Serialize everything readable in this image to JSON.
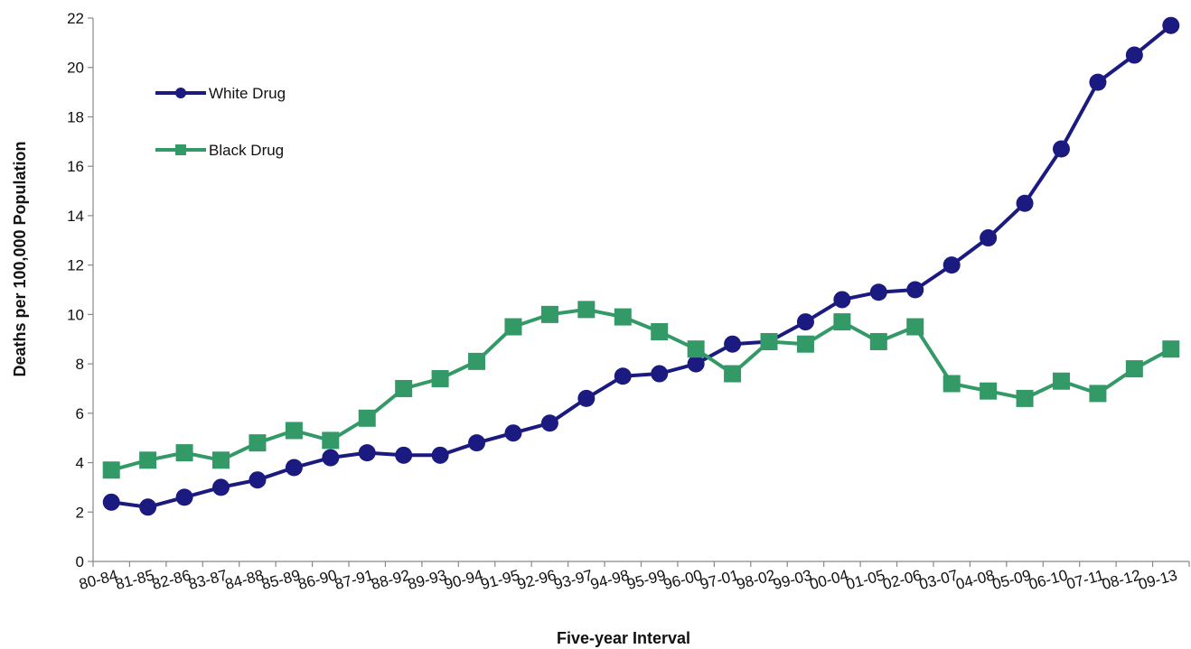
{
  "chart_data": {
    "type": "line",
    "title": "",
    "xlabel": "Five-year Interval",
    "ylabel": "Deaths per 100,000 Population",
    "ylim": [
      0,
      22
    ],
    "yticks": [
      0,
      2,
      4,
      6,
      8,
      10,
      12,
      14,
      16,
      18,
      20,
      22
    ],
    "grid": false,
    "legend_position": "top-left",
    "categories": [
      "80-84",
      "81-85",
      "82-86",
      "83-87",
      "84-88",
      "85-89",
      "86-90",
      "87-91",
      "88-92",
      "89-93",
      "90-94",
      "91-95",
      "92-96",
      "93-97",
      "94-98",
      "95-99",
      "96-00",
      "97-01",
      "98-02",
      "99-03",
      "00-04",
      "01-05",
      "02-06",
      "03-07",
      "04-08",
      "05-09",
      "06-10",
      "07-11",
      "08-12",
      "09-13"
    ],
    "series": [
      {
        "name": "White Drug",
        "color": "#1a1a80",
        "marker": "circle",
        "values": [
          2.4,
          2.2,
          2.6,
          3.0,
          3.3,
          3.8,
          4.2,
          4.4,
          4.3,
          4.3,
          4.8,
          5.2,
          5.6,
          6.6,
          7.5,
          7.6,
          8.0,
          8.8,
          8.9,
          9.7,
          10.6,
          10.9,
          11.0,
          12.0,
          13.1,
          14.5,
          16.7,
          19.4,
          20.5,
          21.7
        ]
      },
      {
        "name": "Black Drug",
        "color": "#339966",
        "marker": "square",
        "values": [
          3.7,
          4.1,
          4.4,
          4.1,
          4.8,
          5.3,
          4.9,
          5.8,
          7.0,
          7.4,
          8.1,
          9.5,
          10.0,
          10.2,
          9.9,
          9.3,
          8.6,
          7.6,
          8.9,
          8.8,
          9.7,
          8.9,
          9.5,
          7.2,
          6.9,
          6.6,
          7.3,
          6.8,
          7.8,
          8.6
        ]
      }
    ]
  }
}
